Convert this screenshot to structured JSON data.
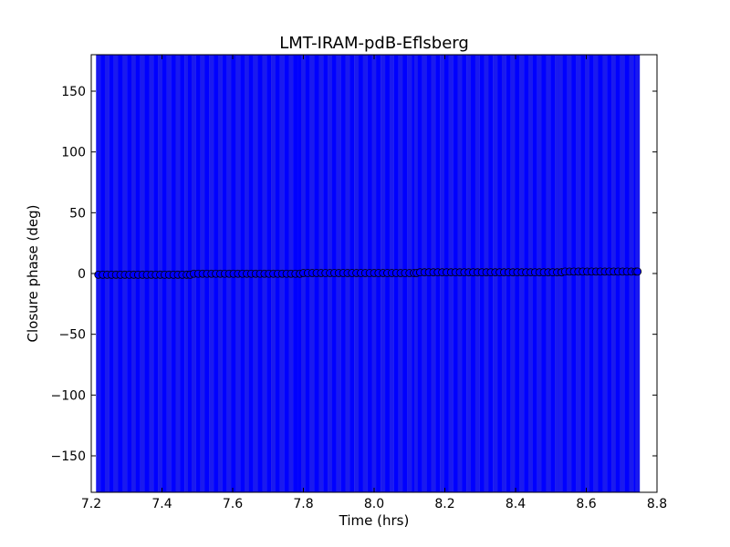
{
  "chart_data": {
    "type": "scatter",
    "title": "LMT-IRAM-pdB-Eflsberg",
    "xlabel": "Time (hrs)",
    "ylabel": "Closure phase (deg)",
    "xlim": [
      7.2,
      8.8
    ],
    "ylim": [
      -180,
      180
    ],
    "xticks": [
      "7.2",
      "7.4",
      "7.6",
      "7.8",
      "8.0",
      "8.2",
      "8.4",
      "8.6",
      "8.8"
    ],
    "yticks": [
      "−150",
      "−100",
      "−50",
      "0",
      "50",
      "100",
      "150"
    ],
    "grid": false,
    "marker_color": "#0000ff",
    "errorbar_color": "#0000ff",
    "errorbar_half_width_deg": 200,
    "sample_interval_hrs": 0.0125,
    "scans": [
      {
        "start": 7.22,
        "end": 7.48,
        "phase": -1.0
      },
      {
        "start": 7.49,
        "end": 7.79,
        "phase": -0.2
      },
      {
        "start": 7.8,
        "end": 8.12,
        "phase": 0.4
      },
      {
        "start": 8.13,
        "end": 8.53,
        "phase": 1.0
      },
      {
        "start": 8.54,
        "end": 8.745,
        "phase": 1.6
      }
    ]
  }
}
